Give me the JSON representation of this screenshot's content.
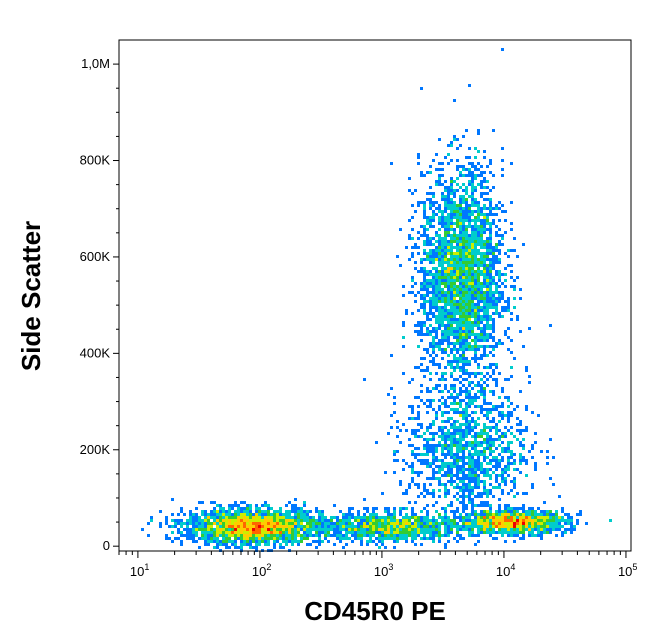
{
  "chart_data": {
    "type": "scatter",
    "subtype": "flow-cytometry-density-dot-plot",
    "xlabel": "CD45R0 PE",
    "ylabel": "Side Scatter",
    "x_scale": "log",
    "xlim": [
      7,
      110000
    ],
    "ylim": [
      -10000,
      1050000
    ],
    "x_ticks": [
      {
        "value": 10,
        "base": "10",
        "exp": "1"
      },
      {
        "value": 100,
        "base": "10",
        "exp": "2"
      },
      {
        "value": 1000,
        "base": "10",
        "exp": "3"
      },
      {
        "value": 10000,
        "base": "10",
        "exp": "4"
      },
      {
        "value": 100000,
        "base": "10",
        "exp": "5"
      }
    ],
    "y_ticks": [
      {
        "value": 0,
        "label": "0"
      },
      {
        "value": 200000,
        "label": "200K"
      },
      {
        "value": 400000,
        "label": "400K"
      },
      {
        "value": 600000,
        "label": "600K"
      },
      {
        "value": 800000,
        "label": "800K"
      },
      {
        "value": 1000000,
        "label": "1,0M"
      }
    ],
    "grid": false,
    "legend": "none",
    "density_colors": [
      "#0000cc",
      "#0077ff",
      "#00cccc",
      "#33cc33",
      "#ccee00",
      "#ffcc00",
      "#ff6600",
      "#ee0000"
    ],
    "populations": [
      {
        "x_center": 90,
        "y_center": 40000,
        "x_spread_log": 0.28,
        "y_spread": 18000,
        "weight": 0.26
      },
      {
        "x_center": 4500,
        "y_center": 560000,
        "x_spread_log": 0.17,
        "y_spread": 110000,
        "weight": 0.34
      },
      {
        "x_center": 12000,
        "y_center": 50000,
        "x_spread_log": 0.22,
        "y_spread": 12000,
        "weight": 0.14
      },
      {
        "x_center": 1200,
        "y_center": 40000,
        "x_spread_log": 0.3,
        "y_spread": 15000,
        "weight": 0.12
      },
      {
        "x_center": 5000,
        "y_center": 200000,
        "x_spread_log": 0.25,
        "y_spread": 70000,
        "weight": 0.14
      }
    ]
  }
}
